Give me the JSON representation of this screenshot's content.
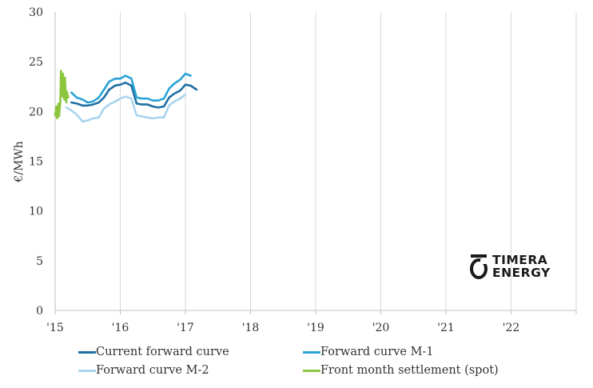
{
  "chart_data": {
    "type": "line",
    "ylabel": "€/MWh",
    "ylim": [
      0,
      30
    ],
    "yticks": [
      "0",
      "5",
      "10",
      "15",
      "20",
      "25",
      "30"
    ],
    "xlim": [
      2015,
      2023
    ],
    "xticks": [
      {
        "x": 2015,
        "label": "'15"
      },
      {
        "x": 2016,
        "label": "'16"
      },
      {
        "x": 2017,
        "label": "'17"
      },
      {
        "x": 2018,
        "label": "'18"
      },
      {
        "x": 2019,
        "label": "'19"
      },
      {
        "x": 2020,
        "label": "'20"
      },
      {
        "x": 2021,
        "label": "'21"
      },
      {
        "x": 2022,
        "label": "'22"
      }
    ],
    "grid": "vertical",
    "legend_position": "bottom",
    "series": [
      {
        "name": "Current forward curve",
        "color": "#1f6fa3",
        "x": [
          2015.25,
          2015.33,
          2015.42,
          2015.5,
          2015.58,
          2015.67,
          2015.75,
          2015.83,
          2015.92,
          2016.0,
          2016.08,
          2016.17,
          2016.25,
          2016.33,
          2016.42,
          2016.5,
          2016.58,
          2016.67,
          2016.75,
          2016.83,
          2016.92,
          2017.0,
          2017.08,
          2017.17
        ],
        "y": [
          20.9,
          20.8,
          20.6,
          20.6,
          20.7,
          20.9,
          21.4,
          22.2,
          22.6,
          22.7,
          22.9,
          22.6,
          20.8,
          20.7,
          20.7,
          20.5,
          20.4,
          20.5,
          21.4,
          21.8,
          22.1,
          22.7,
          22.6,
          22.2
        ]
      },
      {
        "name": "Forward curve M-1",
        "color": "#2aa3d6",
        "x": [
          2015.25,
          2015.33,
          2015.42,
          2015.5,
          2015.58,
          2015.67,
          2015.75,
          2015.83,
          2015.92,
          2016.0,
          2016.08,
          2016.17,
          2016.25,
          2016.33,
          2016.42,
          2016.5,
          2016.58,
          2016.67,
          2016.75,
          2016.83,
          2016.92,
          2017.0,
          2017.08
        ],
        "y": [
          21.9,
          21.4,
          21.2,
          20.9,
          21.0,
          21.4,
          22.2,
          23.0,
          23.3,
          23.3,
          23.6,
          23.3,
          21.4,
          21.3,
          21.3,
          21.1,
          21.1,
          21.3,
          22.3,
          22.8,
          23.2,
          23.8,
          23.6
        ]
      },
      {
        "name": "Forward curve M-2",
        "color": "#a8d4ee",
        "x": [
          2015.17,
          2015.25,
          2015.33,
          2015.42,
          2015.5,
          2015.58,
          2015.67,
          2015.75,
          2015.83,
          2015.92,
          2016.0,
          2016.08,
          2016.17,
          2016.25,
          2016.33,
          2016.42,
          2016.5,
          2016.58,
          2016.67,
          2016.75,
          2016.83,
          2016.92,
          2017.0
        ],
        "y": [
          20.4,
          20.1,
          19.7,
          19.0,
          19.1,
          19.3,
          19.4,
          20.3,
          20.7,
          21.0,
          21.3,
          21.5,
          21.3,
          19.6,
          19.5,
          19.4,
          19.3,
          19.4,
          19.4,
          20.6,
          21.0,
          21.3,
          21.7
        ]
      },
      {
        "name": "Front month settlement (spot)",
        "color": "#8cc63f",
        "x": [
          2015.0,
          2015.02,
          2015.03,
          2015.05,
          2015.06,
          2015.08,
          2015.09,
          2015.11,
          2015.12,
          2015.14,
          2015.15,
          2015.17,
          2015.18,
          2015.2
        ],
        "y": [
          19.6,
          20.5,
          19.3,
          20.8,
          19.5,
          21.0,
          24.1,
          21.5,
          23.8,
          21.2,
          23.4,
          20.9,
          22.0,
          21.4
        ]
      }
    ]
  },
  "logo": {
    "line1": "TIMERA",
    "line2": "ENERGY"
  }
}
